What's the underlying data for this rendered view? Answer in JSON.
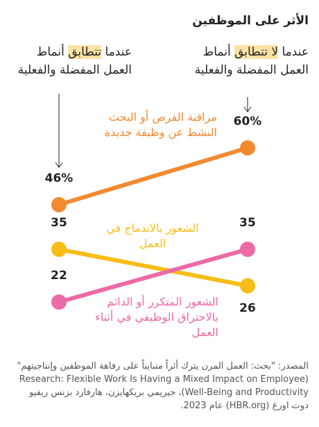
{
  "chart_data": {
    "type": "slope",
    "title": "الأثر على الموظفين",
    "categories": [
      [
        "عندما ",
        "تتطابق",
        " أنماط العمل المفضلة والفعلية"
      ],
      [
        "عندما ",
        "لا تتطابق",
        " أنماط العمل المفضلة والفعلية"
      ]
    ],
    "series": [
      {
        "name": "مراقبة الفرص أو البحث النشط عن وظيفة جديدة",
        "color": "#f28a30",
        "values": [
          46,
          60
        ],
        "value_labels": [
          "46%",
          "60%"
        ]
      },
      {
        "name": "الشعور بالاندماج في العمل",
        "color": "#f8bd16",
        "values": [
          35,
          26
        ]
      },
      {
        "name": "الشعور المتكرر أو الدائم بالاحتراق الوظيفي في أثناء العمل",
        "color": "#ec6aa6",
        "values": [
          22,
          35
        ]
      }
    ],
    "source": "المصدر: \"بحث: العمل المرن يترك أثراً متبايناً على رفاهة الموظفين وإنتاجيتهم\" (Research: Flexible Work Is Having a Mixed Impact on Employee Well-Being and Productivity)، جيريمي بريكهايزن، هارفارد بزنس ريفيو دوت اورغ (HBR.org) عام 2023."
  }
}
